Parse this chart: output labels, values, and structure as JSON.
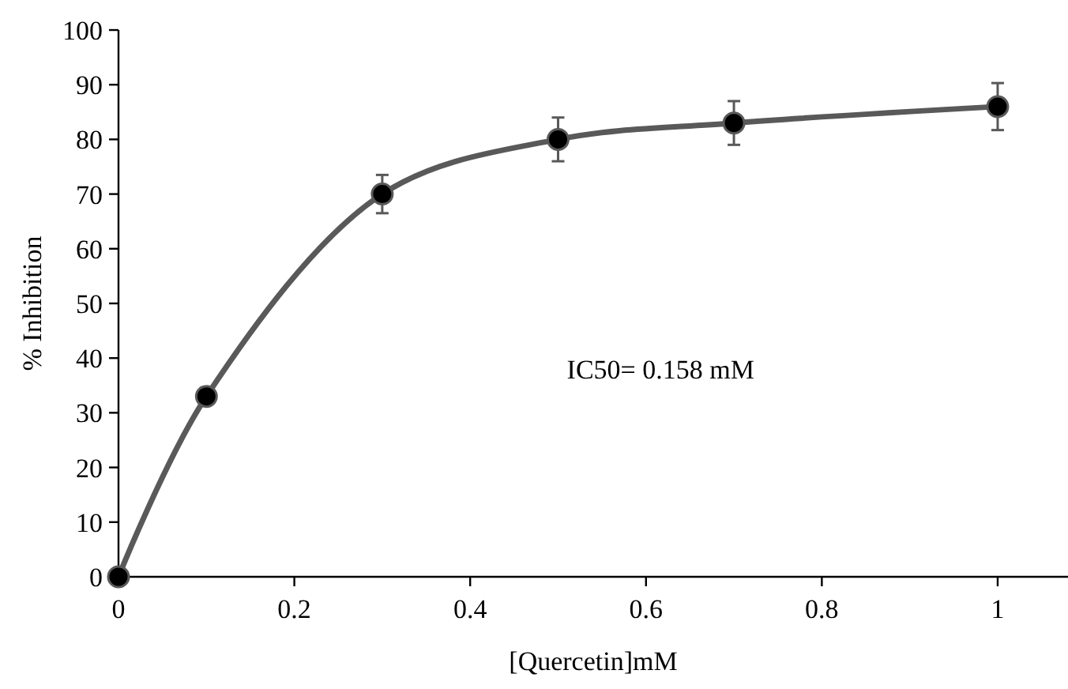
{
  "chart_data": {
    "type": "line",
    "xlabel": "[Quercetin]mM",
    "ylabel": "% Inhibition",
    "x": [
      0,
      0.1,
      0.3,
      0.5,
      0.7,
      1
    ],
    "series": [
      {
        "color": "#595959",
        "values": [
          0,
          33,
          70,
          80,
          83,
          86
        ],
        "errors": [
          null,
          1.5,
          3.5,
          4,
          4,
          4.3
        ]
      }
    ],
    "xlim": [
      0,
      1.08
    ],
    "xticks": [
      0,
      0.2,
      0.4,
      0.6,
      0.8,
      1
    ],
    "ylim": [
      0,
      100
    ],
    "yticks": [
      0,
      10,
      20,
      30,
      40,
      50,
      60,
      70,
      80,
      90,
      100
    ],
    "marker": "circle",
    "line_style": "solid",
    "grid": false,
    "annotations": [
      "IC50= 0.158 mM"
    ]
  }
}
